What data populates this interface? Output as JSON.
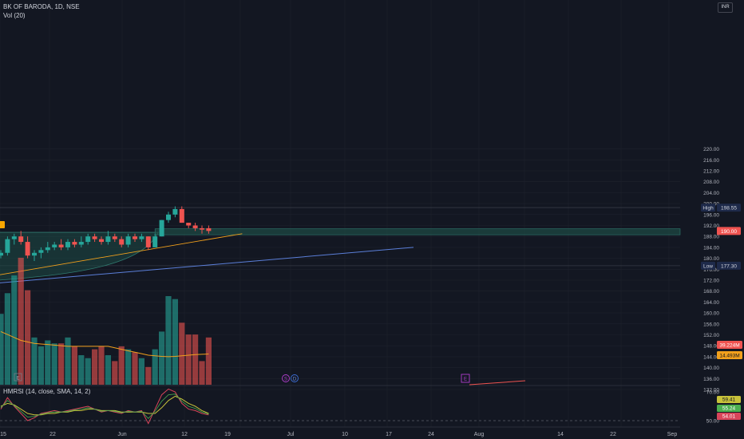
{
  "header": {
    "symbol": "BK OF BARODA, 1D, NSE",
    "volume_label": "Vol (20)",
    "currency_button": "INR"
  },
  "indicator": {
    "label": "HMRSI (14, close, SMA, 14, 2)"
  },
  "price_axis": {
    "ticks": [
      220,
      216,
      212,
      208,
      204,
      200,
      196,
      192,
      188,
      184,
      180,
      176,
      172,
      168,
      164,
      160,
      156,
      152,
      148,
      144,
      140,
      136,
      132
    ],
    "decimals": 2
  },
  "rsi_axis": {
    "ticks": [
      70,
      50
    ]
  },
  "badges": {
    "high": {
      "label": "High",
      "value": "198.55",
      "price": 198.55
    },
    "low": {
      "label": "Low",
      "value": "177.30",
      "price": 177.3
    },
    "last": {
      "value": "190.00",
      "price": 190.0
    },
    "volume": {
      "value": "39.224M"
    },
    "volume_ma": {
      "value": "14.493M"
    },
    "rsi_a": {
      "value": "59.41"
    },
    "rsi_b": {
      "value": "55.24"
    },
    "rsi_c": {
      "value": "54.01"
    }
  },
  "time_axis": [
    "15",
    "22",
    "Jun",
    "12",
    "19",
    "Jul",
    "10",
    "17",
    "24",
    "Aug",
    "14",
    "22",
    "Sep"
  ],
  "markers": {
    "earnings": "E",
    "dividend": "D",
    "split": "S"
  },
  "colors": {
    "bg": "#131722",
    "up": "#26a69a",
    "down": "#ef5350",
    "grid": "#1e222d",
    "axis_text": "#b2b5be",
    "trend": "#5b7fd9",
    "ma": "#f2a01c",
    "zone": "#1e4b45",
    "accent_purple": "#b23fcf"
  },
  "chart_data": {
    "type": "candlestick",
    "x_unit": "trading day",
    "ohlc": [
      {
        "o": 181,
        "h": 183,
        "l": 180,
        "c": 182
      },
      {
        "o": 182,
        "h": 188,
        "l": 181,
        "c": 187
      },
      {
        "o": 187,
        "h": 189,
        "l": 185,
        "c": 188
      },
      {
        "o": 188,
        "h": 190,
        "l": 185,
        "c": 186
      },
      {
        "o": 186,
        "h": 188,
        "l": 180,
        "c": 181
      },
      {
        "o": 181,
        "h": 183,
        "l": 179,
        "c": 182
      },
      {
        "o": 182,
        "h": 184,
        "l": 180,
        "c": 183
      },
      {
        "o": 183,
        "h": 186,
        "l": 182,
        "c": 184
      },
      {
        "o": 184,
        "h": 186,
        "l": 183,
        "c": 185
      },
      {
        "o": 185,
        "h": 187,
        "l": 183,
        "c": 184
      },
      {
        "o": 184,
        "h": 187,
        "l": 183,
        "c": 186
      },
      {
        "o": 186,
        "h": 187,
        "l": 184,
        "c": 185
      },
      {
        "o": 185,
        "h": 188,
        "l": 184,
        "c": 186
      },
      {
        "o": 186,
        "h": 189,
        "l": 185,
        "c": 188
      },
      {
        "o": 188,
        "h": 189,
        "l": 186,
        "c": 187
      },
      {
        "o": 187,
        "h": 188,
        "l": 185,
        "c": 186
      },
      {
        "o": 186,
        "h": 190,
        "l": 185,
        "c": 188
      },
      {
        "o": 188,
        "h": 189,
        "l": 186,
        "c": 187
      },
      {
        "o": 187,
        "h": 188,
        "l": 184,
        "c": 185
      },
      {
        "o": 185,
        "h": 189,
        "l": 184,
        "c": 188
      },
      {
        "o": 188,
        "h": 189,
        "l": 186,
        "c": 187
      },
      {
        "o": 187,
        "h": 189,
        "l": 186,
        "c": 188
      },
      {
        "o": 188,
        "h": 188,
        "l": 183,
        "c": 184
      },
      {
        "o": 184,
        "h": 189,
        "l": 184,
        "c": 188
      },
      {
        "o": 188,
        "h": 194,
        "l": 188,
        "c": 194
      },
      {
        "o": 194,
        "h": 197,
        "l": 193,
        "c": 196
      },
      {
        "o": 196,
        "h": 199,
        "l": 195,
        "c": 198
      },
      {
        "o": 198,
        "h": 199,
        "l": 193,
        "c": 193
      },
      {
        "o": 193,
        "h": 193,
        "l": 191,
        "c": 192
      },
      {
        "o": 192,
        "h": 193,
        "l": 190,
        "c": 191
      },
      {
        "o": 191,
        "h": 192,
        "l": 189,
        "c": 190.5
      },
      {
        "o": 191,
        "h": 192,
        "l": 189,
        "c": 190
      }
    ],
    "volume": [
      24,
      31,
      37,
      43,
      32,
      16,
      13,
      15,
      14,
      14,
      16,
      13,
      10,
      9,
      12,
      13,
      10,
      8,
      13,
      12,
      11,
      9,
      6,
      12,
      18,
      30,
      29,
      21,
      17,
      17,
      8,
      16
    ],
    "volume_ma": [
      18,
      17,
      16,
      15,
      14.5,
      14,
      13.8,
      13.6,
      13.4,
      13.2,
      13,
      13,
      13,
      13,
      13,
      13,
      13,
      12.5,
      12,
      11.5,
      11,
      10.5,
      10,
      9.8,
      9.6,
      9.5,
      9.6,
      9.8,
      10,
      10.2,
      10.3,
      10.4
    ],
    "rsi": [
      58,
      66,
      60,
      55,
      50,
      52,
      55,
      56,
      57,
      56,
      57,
      58,
      59,
      60,
      58,
      56,
      57,
      56,
      55,
      57,
      56,
      57,
      48,
      58,
      68,
      72,
      70,
      62,
      58,
      57,
      55,
      54
    ],
    "rsi_signal": [
      60,
      62,
      61,
      58,
      55,
      54,
      54,
      55,
      55,
      56,
      56,
      57,
      57,
      58,
      58,
      57,
      57,
      57,
      56,
      56,
      56,
      56,
      55,
      55,
      59,
      64,
      67,
      65,
      62,
      60,
      57,
      55
    ],
    "trendline": {
      "start_price": 171,
      "end_price": 184
    },
    "ylim": [
      132,
      224
    ],
    "rsi_ylim": [
      44,
      72
    ]
  }
}
